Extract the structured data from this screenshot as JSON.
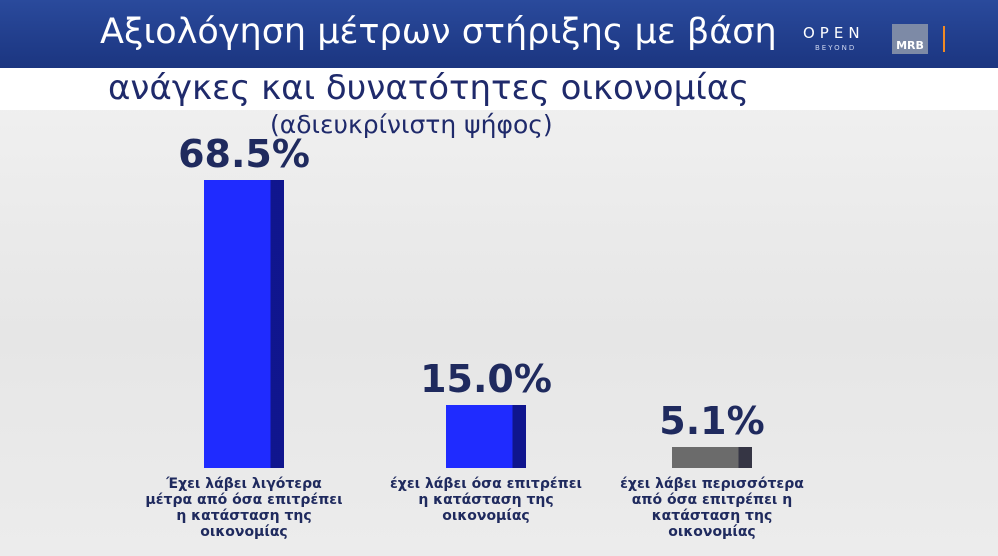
{
  "header": {
    "title_line1": "Αξιολόγηση μέτρων στήριξης με βάση",
    "logo_open": "OPEN",
    "logo_beyond": "BEYOND",
    "logo_mrb": "MRB"
  },
  "chart_data": {
    "type": "bar",
    "title": "ανάγκες και δυνατότητες οικονομίας",
    "subtitle": "(αδιευκρίνιστη ψήφος)",
    "categories": [
      "Έχει λάβει λιγότερα μέτρα από όσα επιτρέπει η κατάσταση της οικονομίας",
      "έχει λάβει όσα επιτρέπει η κατάσταση της οικονομίας",
      "έχει λάβει περισσότερα από όσα επιτρέπει η κατάσταση της οικονομίας"
    ],
    "values": [
      68.5,
      15.0,
      5.1
    ],
    "value_labels": [
      "68.5%",
      "15.0%",
      "5.1%"
    ],
    "colors": [
      "#1f2bff",
      "#1f2bff",
      "#6b6b6b"
    ]
  }
}
